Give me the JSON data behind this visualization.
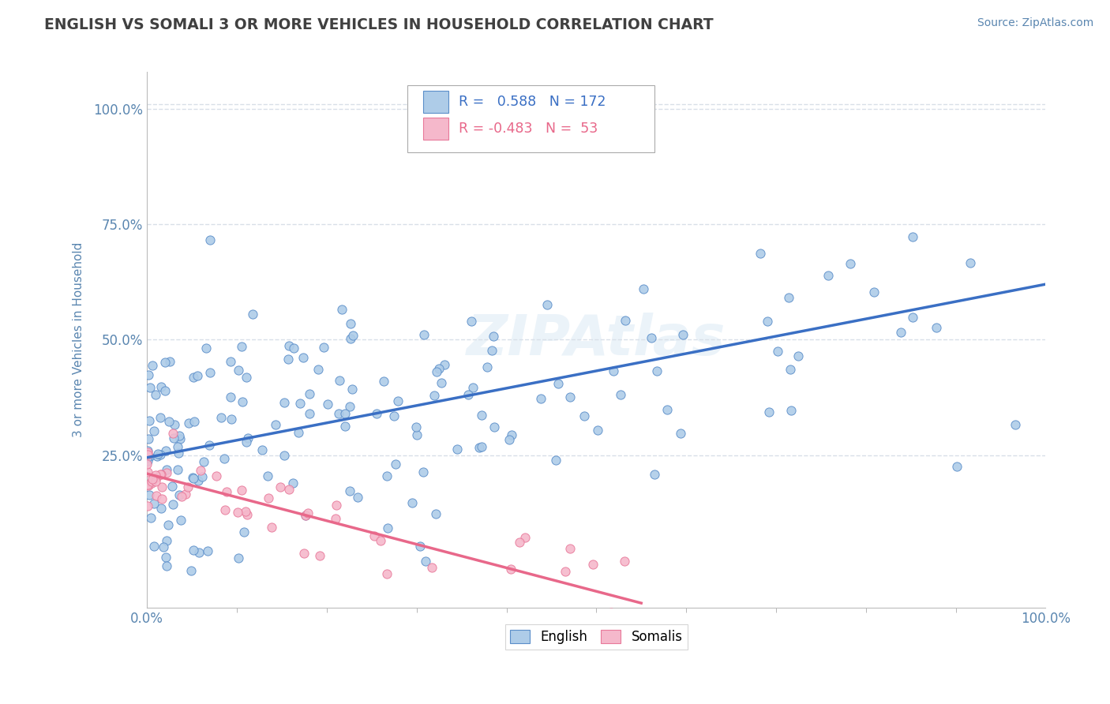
{
  "title": "ENGLISH VS SOMALI 3 OR MORE VEHICLES IN HOUSEHOLD CORRELATION CHART",
  "source_text": "Source: ZipAtlas.com",
  "ylabel": "3 or more Vehicles in Household",
  "xlim": [
    0.0,
    1.0
  ],
  "ylim": [
    -0.08,
    1.08
  ],
  "x_tick_labels": [
    "0.0%",
    "100.0%"
  ],
  "y_tick_labels": [
    "25.0%",
    "50.0%",
    "75.0%",
    "100.0%"
  ],
  "y_ticks": [
    0.25,
    0.5,
    0.75,
    1.0
  ],
  "legend_labels": [
    "English",
    "Somalis"
  ],
  "english_R": 0.588,
  "english_N": 172,
  "somali_R": -0.483,
  "somali_N": 53,
  "english_color": "#aecce8",
  "somali_color": "#f5b8cb",
  "english_edge_color": "#5b8ec9",
  "somali_edge_color": "#e8799a",
  "english_line_color": "#3a6fc4",
  "somali_line_color": "#e8688a",
  "title_color": "#404040",
  "label_color": "#5a86b0",
  "tick_color": "#5a86b0",
  "grid_color": "#d8dfe8",
  "background_color": "#ffffff",
  "english_line_x0": 0.0,
  "english_line_y0": 0.245,
  "english_line_x1": 1.0,
  "english_line_y1": 0.62,
  "somali_line_x0": 0.0,
  "somali_line_y0": 0.21,
  "somali_line_x1": 0.55,
  "somali_line_y1": -0.07
}
